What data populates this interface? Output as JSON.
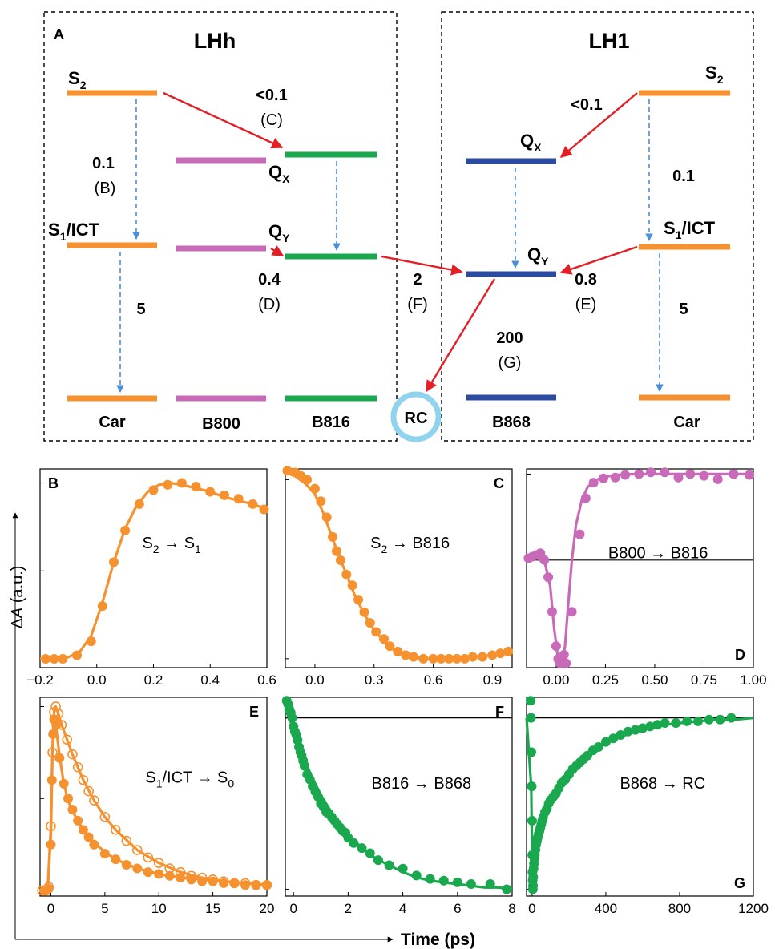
{
  "colors": {
    "car": "#f5922f",
    "b800": "#c86ab8",
    "b816": "#1aa84f",
    "b868": "#2b4aa1",
    "red_arrow": "#e31e24",
    "blue_dash": "#4a90d9",
    "rc_ring": "#8fd3ef"
  },
  "diagram": {
    "panel_letter": "A",
    "lhh_title": "LHh",
    "lh1_title": "LH1",
    "states": {
      "s2": "S",
      "s2_sub": "2",
      "s1": "S",
      "s1_sub": "1",
      "s1_suffix": "/ICT",
      "q": "Q",
      "qx_sub": "X",
      "qy_sub": "Y"
    },
    "bottom_labels": {
      "car_left": "Car",
      "b800": "B800",
      "b816": "B816",
      "rc": "RC",
      "b868": "B868",
      "car_right": "Car"
    },
    "rates": {
      "c_value": "<0.1",
      "c_tag": "(C)",
      "b_value": "0.1",
      "b_tag": "(B)",
      "d_value": "0.4",
      "d_tag": "(D)",
      "five_left": "5",
      "f_value": "2",
      "f_tag": "(F)",
      "g_value": "200",
      "g_tag": "(G)",
      "lh1_qx_value": "<0.1",
      "lh1_s1_value": "0.1",
      "e_value": "0.8",
      "e_tag": "(E)",
      "five_right": "5"
    }
  },
  "axes_labels": {
    "ylabel_prefix": "Δ",
    "ylabel_var": "A",
    "ylabel_suffix": " (a.u.)",
    "xlabel": "Time (ps)"
  },
  "chart_data": [
    {
      "panel": "B",
      "type": "scatter",
      "label": "S",
      "label_sub": "2",
      "label_arrow": " → S",
      "label_sub2": "1",
      "color": "#f5922f",
      "xlim": [
        -0.2,
        0.6
      ],
      "ylim": [
        -0.05,
        1.08
      ],
      "xticks": [
        "−0.2",
        "0.0",
        "0.2",
        "0.4",
        "0.6"
      ],
      "xtick_values": [
        -0.2,
        0.0,
        0.2,
        0.4,
        0.6
      ],
      "yticks": [
        0,
        0.5,
        1.0
      ],
      "series": [
        {
          "kind": "points",
          "x": [
            -0.18,
            -0.15,
            -0.12,
            -0.07,
            -0.02,
            0.02,
            0.06,
            0.1,
            0.15,
            0.2,
            0.25,
            0.3,
            0.35,
            0.4,
            0.45,
            0.5,
            0.55,
            0.59
          ],
          "y": [
            0.0,
            0.0,
            0.0,
            0.02,
            0.1,
            0.3,
            0.55,
            0.73,
            0.88,
            0.96,
            0.99,
            1.0,
            0.98,
            0.95,
            0.93,
            0.91,
            0.88,
            0.85
          ]
        },
        {
          "kind": "line",
          "x": [
            -0.2,
            -0.15,
            -0.1,
            -0.06,
            -0.02,
            0.02,
            0.06,
            0.1,
            0.14,
            0.18,
            0.22,
            0.26,
            0.3,
            0.35,
            0.4,
            0.45,
            0.5,
            0.55,
            0.6
          ],
          "y": [
            0.0,
            0.0,
            0.01,
            0.04,
            0.13,
            0.32,
            0.55,
            0.74,
            0.87,
            0.95,
            0.99,
            1.0,
            0.99,
            0.97,
            0.95,
            0.92,
            0.9,
            0.88,
            0.85
          ]
        }
      ]
    },
    {
      "panel": "C",
      "type": "scatter",
      "label": "S",
      "label_sub": "2",
      "label_arrow": " → B816",
      "label_sub2": "",
      "color": "#f5922f",
      "xlim": [
        -0.15,
        1.0
      ],
      "ylim": [
        -0.05,
        1.06
      ],
      "xticks": [
        "0.0",
        "0.3",
        "0.6",
        "0.9"
      ],
      "xtick_values": [
        0.0,
        0.3,
        0.6,
        0.9
      ],
      "yticks": [
        0,
        1.0
      ],
      "series": [
        {
          "kind": "points",
          "x": [
            -0.14,
            -0.1,
            -0.07,
            -0.04,
            0.0,
            0.03,
            0.06,
            0.09,
            0.11,
            0.13,
            0.16,
            0.19,
            0.22,
            0.25,
            0.28,
            0.31,
            0.35,
            0.38,
            0.42,
            0.46,
            0.5,
            0.55,
            0.6,
            0.64,
            0.68,
            0.72,
            0.76,
            0.8,
            0.85,
            0.9,
            0.94,
            0.98
          ],
          "y": [
            1.05,
            1.04,
            1.02,
            1.0,
            0.95,
            0.88,
            0.79,
            0.68,
            0.6,
            0.55,
            0.47,
            0.41,
            0.33,
            0.26,
            0.2,
            0.15,
            0.11,
            0.07,
            0.04,
            0.02,
            0.01,
            0.0,
            0.0,
            0.0,
            0.0,
            0.0,
            0.0,
            0.01,
            0.01,
            0.02,
            0.03,
            0.04
          ]
        },
        {
          "kind": "line",
          "x": [
            -0.15,
            -0.1,
            -0.05,
            0.0,
            0.04,
            0.08,
            0.12,
            0.16,
            0.2,
            0.25,
            0.3,
            0.35,
            0.4,
            0.45,
            0.5,
            0.55,
            0.6,
            0.7,
            0.8,
            0.9,
            1.0
          ],
          "y": [
            1.04,
            1.02,
            0.98,
            0.92,
            0.82,
            0.7,
            0.58,
            0.47,
            0.36,
            0.25,
            0.16,
            0.1,
            0.05,
            0.03,
            0.01,
            0.0,
            0.0,
            0.0,
            0.01,
            0.02,
            0.04
          ]
        }
      ]
    },
    {
      "panel": "D",
      "type": "scatter",
      "label": "B800 → B816",
      "label_sub": "",
      "label_arrow": "",
      "label_sub2": "",
      "color": "#c86ab8",
      "xlim": [
        -0.15,
        1.0
      ],
      "ylim": [
        -1.25,
        1.06
      ],
      "xticks": [
        "0.00",
        "0.25",
        "0.50",
        "0.75",
        "1.00"
      ],
      "xtick_values": [
        0.0,
        0.25,
        0.5,
        0.75,
        1.0
      ],
      "yticks": [
        0,
        1.0
      ],
      "zero_line": true,
      "series": [
        {
          "kind": "points",
          "x": [
            -0.14,
            -0.12,
            -0.1,
            -0.08,
            -0.06,
            -0.04,
            -0.02,
            0.0,
            0.01,
            0.02,
            0.03,
            0.04,
            0.05,
            0.08,
            0.12,
            0.15,
            0.19,
            0.24,
            0.3,
            0.35,
            0.42,
            0.48,
            0.55,
            0.62,
            0.68,
            0.75,
            0.82,
            0.9,
            0.98
          ],
          "y": [
            0.02,
            0.04,
            0.06,
            0.08,
            0.0,
            -0.2,
            -0.6,
            -1.0,
            -1.15,
            -1.2,
            -1.18,
            -1.1,
            -1.2,
            -0.6,
            0.3,
            0.72,
            0.9,
            0.95,
            0.96,
            0.99,
            1.0,
            1.02,
            1.02,
            0.96,
            1.0,
            0.98,
            0.94,
            1.0,
            0.99
          ]
        },
        {
          "kind": "line",
          "x": [
            -0.15,
            -0.1,
            -0.06,
            -0.03,
            -0.01,
            0.01,
            0.03,
            0.045,
            0.06,
            0.08,
            0.1,
            0.13,
            0.16,
            0.2,
            0.25,
            0.3,
            0.4,
            0.5,
            0.6,
            0.8,
            1.0
          ],
          "y": [
            0.0,
            0.02,
            0.0,
            -0.3,
            -0.8,
            -1.15,
            -1.18,
            -1.0,
            -0.55,
            0.0,
            0.4,
            0.7,
            0.85,
            0.93,
            0.97,
            0.99,
            1.0,
            1.0,
            1.0,
            1.0,
            1.0
          ]
        }
      ]
    },
    {
      "panel": "E",
      "type": "scatter",
      "label": "S",
      "label_sub": "1",
      "label_arrow": "/ICT → S",
      "label_sub2": "0",
      "color": "#f5922f",
      "xlim": [
        -1.0,
        20.0
      ],
      "ylim": [
        -0.03,
        1.05
      ],
      "xticks": [
        "0",
        "5",
        "10",
        "15",
        "20"
      ],
      "xtick_values": [
        0,
        5,
        10,
        15,
        20
      ],
      "yticks": [
        0,
        0.5,
        1.0
      ],
      "series": [
        {
          "kind": "points",
          "x": [
            -0.6,
            -0.4,
            -0.2,
            0.0,
            0.1,
            0.2,
            0.3,
            0.5,
            0.8,
            1.2,
            1.6,
            2.0,
            2.5,
            3.0,
            3.5,
            4.0,
            5.0,
            6.0,
            7.0,
            8.0,
            9.0,
            10.0,
            11.0,
            12.0,
            13.0,
            14.0,
            15.0,
            16.0,
            17.0,
            18.0,
            19.0,
            20.0
          ],
          "y": [
            0.0,
            0.0,
            0.01,
            0.25,
            0.6,
            0.85,
            0.93,
            0.9,
            0.72,
            0.58,
            0.5,
            0.44,
            0.38,
            0.33,
            0.29,
            0.25,
            0.2,
            0.17,
            0.14,
            0.12,
            0.1,
            0.09,
            0.08,
            0.07,
            0.06,
            0.05,
            0.05,
            0.04,
            0.04,
            0.03,
            0.03,
            0.03
          ]
        },
        {
          "kind": "line",
          "x": [
            -1.0,
            -0.3,
            0.0,
            0.15,
            0.3,
            0.5,
            0.8,
            1.2,
            1.6,
            2.0,
            3.0,
            4.0,
            5.0,
            6.0,
            8.0,
            10.0,
            12.0,
            14.0,
            16.0,
            18.0,
            20.0
          ],
          "y": [
            0.0,
            0.0,
            0.3,
            0.75,
            0.92,
            0.88,
            0.73,
            0.58,
            0.49,
            0.43,
            0.33,
            0.26,
            0.21,
            0.17,
            0.12,
            0.09,
            0.07,
            0.06,
            0.05,
            0.04,
            0.03
          ]
        },
        {
          "kind": "open",
          "x": [
            -0.8,
            -0.5,
            -0.2,
            0.0,
            0.15,
            0.3,
            0.45,
            0.7,
            1.0,
            1.5,
            2.0,
            2.5,
            3.0,
            3.5,
            4.0,
            5.0,
            6.0,
            7.0,
            8.0,
            9.0,
            10.0,
            11.0,
            12.0,
            13.0,
            14.0,
            15.0,
            16.0,
            17.0,
            18.0,
            19.0,
            20.0
          ],
          "y": [
            0.0,
            0.0,
            0.02,
            0.35,
            0.75,
            0.97,
            1.0,
            0.96,
            0.9,
            0.82,
            0.74,
            0.67,
            0.6,
            0.54,
            0.49,
            0.4,
            0.33,
            0.27,
            0.22,
            0.18,
            0.15,
            0.12,
            0.1,
            0.08,
            0.07,
            0.06,
            0.05,
            0.04,
            0.04,
            0.03,
            0.03
          ]
        },
        {
          "kind": "line",
          "x": [
            -1.0,
            -0.3,
            0.0,
            0.15,
            0.3,
            0.45,
            0.7,
            1.0,
            1.5,
            2.0,
            3.0,
            4.0,
            5.0,
            6.0,
            8.0,
            10.0,
            12.0,
            14.0,
            16.0,
            18.0,
            20.0
          ],
          "y": [
            0.0,
            0.0,
            0.35,
            0.78,
            0.97,
            1.0,
            0.96,
            0.9,
            0.82,
            0.74,
            0.6,
            0.49,
            0.4,
            0.33,
            0.22,
            0.15,
            0.1,
            0.07,
            0.05,
            0.04,
            0.03
          ]
        }
      ]
    },
    {
      "panel": "F",
      "type": "scatter",
      "label": "B816 → B868",
      "label_sub": "",
      "label_arrow": "",
      "label_sub2": "",
      "color": "#1aa84f",
      "xlim": [
        -0.3,
        8.0
      ],
      "ylim": [
        -1.04,
        0.12
      ],
      "xticks": [
        "0",
        "2",
        "4",
        "6",
        "8"
      ],
      "xtick_values": [
        0,
        2,
        4,
        6,
        8
      ],
      "yticks": [
        -1.0,
        0
      ],
      "zero_line": true,
      "series": [
        {
          "kind": "points",
          "x": [
            -0.25,
            -0.2,
            -0.15,
            -0.1,
            -0.05,
            0.0,
            0.05,
            0.1,
            0.15,
            0.2,
            0.25,
            0.3,
            0.35,
            0.4,
            0.5,
            0.6,
            0.7,
            0.8,
            0.9,
            1.0,
            1.1,
            1.2,
            1.3,
            1.4,
            1.5,
            1.6,
            1.7,
            1.8,
            1.9,
            2.0,
            2.2,
            2.5,
            2.8,
            3.1,
            3.5,
            4.0,
            4.5,
            5.0,
            5.5,
            6.0,
            6.5,
            7.2,
            7.8
          ],
          "y": [
            0.1,
            0.08,
            0.05,
            0.03,
            0.0,
            -0.05,
            -0.08,
            -0.1,
            -0.13,
            -0.17,
            -0.2,
            -0.22,
            -0.25,
            -0.28,
            -0.33,
            -0.36,
            -0.4,
            -0.43,
            -0.46,
            -0.5,
            -0.52,
            -0.55,
            -0.56,
            -0.58,
            -0.6,
            -0.62,
            -0.64,
            -0.66,
            -0.67,
            -0.7,
            -0.73,
            -0.76,
            -0.79,
            -0.83,
            -0.86,
            -0.88,
            -0.92,
            -0.94,
            -0.95,
            -0.96,
            -0.97,
            -0.97,
            -1.0
          ]
        },
        {
          "kind": "line",
          "x": [
            -0.3,
            0.0,
            0.3,
            0.6,
            1.0,
            1.5,
            2.0,
            2.5,
            3.0,
            3.5,
            4.0,
            4.5,
            5.0,
            5.5,
            6.0,
            6.5,
            7.0,
            7.5,
            8.0
          ],
          "y": [
            0.05,
            -0.06,
            -0.2,
            -0.32,
            -0.45,
            -0.58,
            -0.68,
            -0.76,
            -0.82,
            -0.86,
            -0.9,
            -0.93,
            -0.95,
            -0.96,
            -0.97,
            -0.98,
            -0.99,
            -0.99,
            -1.0
          ]
        }
      ]
    },
    {
      "panel": "G",
      "type": "scatter",
      "label": "B868 → RC",
      "label_sub": "",
      "label_arrow": "",
      "label_sub2": "",
      "color": "#1aa84f",
      "xlim": [
        -30,
        1200
      ],
      "ylim": [
        -1.04,
        0.12
      ],
      "xticks": [
        "0",
        "400",
        "800",
        "1200"
      ],
      "xtick_values": [
        0,
        400,
        800,
        1200
      ],
      "yticks": [
        -1.0,
        0
      ],
      "zero_line": true,
      "series": [
        {
          "kind": "points",
          "x": [
            -8,
            -6,
            -4,
            -2,
            0,
            1,
            2,
            3,
            4,
            5,
            6,
            8,
            10,
            12,
            15,
            18,
            22,
            26,
            30,
            35,
            40,
            45,
            50,
            55,
            60,
            70,
            80,
            90,
            100,
            115,
            130,
            145,
            160,
            180,
            200,
            220,
            240,
            260,
            280,
            300,
            330,
            360,
            400,
            440,
            480,
            520,
            560,
            600,
            640,
            680,
            720,
            780,
            840,
            900,
            960,
            1020,
            1080
          ],
          "y": [
            0.1,
            0.0,
            -0.2,
            -0.4,
            -0.6,
            -0.8,
            -0.9,
            -0.95,
            -1.0,
            -0.98,
            -0.93,
            -0.88,
            -0.85,
            -0.82,
            -0.8,
            -0.77,
            -0.74,
            -0.72,
            -0.7,
            -0.68,
            -0.66,
            -0.64,
            -0.62,
            -0.6,
            -0.58,
            -0.55,
            -0.53,
            -0.5,
            -0.48,
            -0.46,
            -0.44,
            -0.41,
            -0.38,
            -0.36,
            -0.33,
            -0.3,
            -0.28,
            -0.26,
            -0.24,
            -0.22,
            -0.19,
            -0.17,
            -0.14,
            -0.12,
            -0.1,
            -0.08,
            -0.07,
            -0.06,
            -0.05,
            -0.04,
            -0.03,
            -0.03,
            -0.02,
            -0.02,
            -0.01,
            -0.01,
            0.0
          ]
        },
        {
          "kind": "line",
          "x": [
            -30,
            -5,
            0,
            4,
            10,
            20,
            40,
            70,
            100,
            150,
            200,
            260,
            320,
            400,
            480,
            560,
            640,
            720,
            800,
            900,
            1000,
            1100,
            1200
          ],
          "y": [
            0.0,
            -0.4,
            -0.8,
            -1.0,
            -0.87,
            -0.77,
            -0.67,
            -0.56,
            -0.48,
            -0.39,
            -0.32,
            -0.25,
            -0.2,
            -0.15,
            -0.11,
            -0.08,
            -0.06,
            -0.04,
            -0.03,
            -0.02,
            -0.01,
            -0.01,
            0.0
          ]
        }
      ]
    }
  ]
}
